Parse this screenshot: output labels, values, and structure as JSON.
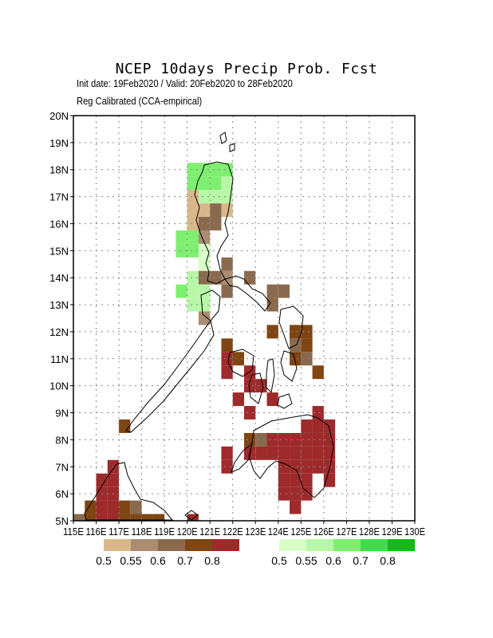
{
  "header": {
    "title": "NCEP 10days Precip Prob. Fcst",
    "subtitle": "Init date: 19Feb2020 / Valid: 20Feb2020 to 28Feb2020",
    "method": "Reg Calibrated (CCA-empirical)"
  },
  "map": {
    "lon_range": [
      115,
      130
    ],
    "lat_range": [
      5,
      20
    ],
    "grid_step": 1,
    "grid": "dotted",
    "lat_ticks": [
      "5N",
      "6N",
      "7N",
      "8N",
      "9N",
      "10N",
      "11N",
      "12N",
      "13N",
      "14N",
      "15N",
      "16N",
      "17N",
      "18N",
      "19N",
      "20N"
    ],
    "lon_ticks": [
      "115E",
      "116E",
      "117E",
      "118E",
      "119E",
      "120E",
      "121E",
      "122E",
      "123E",
      "124E",
      "125E",
      "126E",
      "127E",
      "128E",
      "129E",
      "130E"
    ]
  },
  "legend": {
    "below": {
      "colors": [
        "#d8b88a",
        "#a98c72",
        "#8a6a4f",
        "#7f4512",
        "#9e2a2b"
      ],
      "labels": [
        "0.5",
        "0.55",
        "0.6",
        "0.7",
        "0.8"
      ]
    },
    "above": {
      "colors": [
        "#d8ffc8",
        "#b7f7a7",
        "#7eef70",
        "#3fdc4e",
        "#12bb17"
      ],
      "labels": [
        "0.5",
        "0.55",
        "0.6",
        "0.7",
        "0.8"
      ]
    }
  },
  "chart_data": {
    "type": "heatmap",
    "cell_size_deg": 0.5,
    "categories_key": {
      "B1": "below 0.5",
      "B2": "below 0.55",
      "B3": "below 0.6",
      "B4": "below 0.7",
      "B5": "below 0.8",
      "A1": "above 0.5",
      "A2": "above 0.55",
      "A3": "above 0.6"
    },
    "cells": [
      [
        120.25,
        18.0,
        "A3"
      ],
      [
        120.75,
        18.0,
        "A3"
      ],
      [
        121.25,
        18.0,
        "A3"
      ],
      [
        121.75,
        18.0,
        "A3"
      ],
      [
        120.25,
        17.5,
        "A3"
      ],
      [
        120.75,
        17.5,
        "A3"
      ],
      [
        121.25,
        17.5,
        "A3"
      ],
      [
        121.75,
        17.5,
        "A2"
      ],
      [
        120.25,
        17.0,
        "B1"
      ],
      [
        120.75,
        17.0,
        "A2"
      ],
      [
        121.25,
        17.0,
        "A2"
      ],
      [
        121.75,
        17.0,
        "A2"
      ],
      [
        120.25,
        16.5,
        "B1"
      ],
      [
        120.75,
        16.5,
        "B1"
      ],
      [
        121.25,
        16.5,
        "B3"
      ],
      [
        121.75,
        16.5,
        "B1"
      ],
      [
        120.25,
        16.0,
        "B1"
      ],
      [
        120.75,
        16.0,
        "B3"
      ],
      [
        121.25,
        16.0,
        "B3"
      ],
      [
        119.75,
        15.5,
        "A3"
      ],
      [
        120.25,
        15.5,
        "A3"
      ],
      [
        120.75,
        15.5,
        "B2"
      ],
      [
        119.75,
        15.0,
        "A3"
      ],
      [
        120.25,
        15.0,
        "A3"
      ],
      [
        120.75,
        15.0,
        "A1"
      ],
      [
        120.75,
        14.5,
        "A1"
      ],
      [
        121.75,
        14.5,
        "B3"
      ],
      [
        120.25,
        14.0,
        "A2"
      ],
      [
        120.75,
        14.0,
        "B3"
      ],
      [
        121.25,
        14.0,
        "B3"
      ],
      [
        121.75,
        14.0,
        "B2"
      ],
      [
        122.75,
        14.0,
        "B3"
      ],
      [
        119.75,
        13.5,
        "A3"
      ],
      [
        120.25,
        13.5,
        "A2"
      ],
      [
        120.75,
        13.5,
        "A2"
      ],
      [
        121.75,
        13.5,
        "B3"
      ],
      [
        123.75,
        13.5,
        "B3"
      ],
      [
        124.25,
        13.5,
        "B3"
      ],
      [
        120.25,
        13.0,
        "A2"
      ],
      [
        120.75,
        13.0,
        "A2"
      ],
      [
        123.75,
        13.0,
        "B3"
      ],
      [
        120.75,
        12.5,
        "B2"
      ],
      [
        123.75,
        12.0,
        "B4"
      ],
      [
        124.75,
        12.0,
        "B4"
      ],
      [
        125.25,
        12.0,
        "B4"
      ],
      [
        121.75,
        11.5,
        "B4"
      ],
      [
        124.75,
        11.5,
        "B3"
      ],
      [
        125.25,
        11.5,
        "B4"
      ],
      [
        121.75,
        11.0,
        "B5"
      ],
      [
        122.25,
        11.0,
        "B4"
      ],
      [
        124.75,
        11.0,
        "B4"
      ],
      [
        125.25,
        11.0,
        "B3"
      ],
      [
        121.75,
        10.5,
        "B5"
      ],
      [
        122.75,
        10.5,
        "B5"
      ],
      [
        125.75,
        10.5,
        "B4"
      ],
      [
        122.75,
        10.0,
        "B5"
      ],
      [
        123.25,
        10.0,
        "B5"
      ],
      [
        122.25,
        9.5,
        "B5"
      ],
      [
        123.75,
        9.5,
        "B5"
      ],
      [
        122.75,
        9.0,
        "B5"
      ],
      [
        125.75,
        9.0,
        "B5"
      ],
      [
        117.25,
        8.5,
        "B4"
      ],
      [
        125.25,
        8.5,
        "B5"
      ],
      [
        125.75,
        8.5,
        "B5"
      ],
      [
        126.25,
        8.5,
        "B5"
      ],
      [
        122.75,
        8.0,
        "B4"
      ],
      [
        123.25,
        8.0,
        "B3"
      ],
      [
        123.75,
        8.0,
        "B5"
      ],
      [
        124.25,
        8.0,
        "B5"
      ],
      [
        124.75,
        8.0,
        "B5"
      ],
      [
        125.25,
        8.0,
        "B5"
      ],
      [
        125.75,
        8.0,
        "B5"
      ],
      [
        126.25,
        8.0,
        "B5"
      ],
      [
        121.75,
        7.5,
        "B5"
      ],
      [
        122.75,
        7.5,
        "B5"
      ],
      [
        123.25,
        7.5,
        "B5"
      ],
      [
        123.75,
        7.5,
        "B5"
      ],
      [
        124.25,
        7.5,
        "B5"
      ],
      [
        124.75,
        7.5,
        "B5"
      ],
      [
        125.25,
        7.5,
        "B5"
      ],
      [
        125.75,
        7.5,
        "B5"
      ],
      [
        126.25,
        7.5,
        "B5"
      ],
      [
        116.75,
        7.0,
        "B5"
      ],
      [
        121.75,
        7.0,
        "B5"
      ],
      [
        124.25,
        7.0,
        "B5"
      ],
      [
        124.75,
        7.0,
        "B5"
      ],
      [
        125.25,
        7.0,
        "B5"
      ],
      [
        125.75,
        7.0,
        "B5"
      ],
      [
        126.25,
        7.0,
        "B5"
      ],
      [
        116.25,
        6.5,
        "B5"
      ],
      [
        116.75,
        6.5,
        "B5"
      ],
      [
        124.25,
        6.5,
        "B5"
      ],
      [
        124.75,
        6.5,
        "B5"
      ],
      [
        125.25,
        6.5,
        "B5"
      ],
      [
        126.25,
        6.5,
        "B5"
      ],
      [
        116.25,
        6.0,
        "B5"
      ],
      [
        116.75,
        6.0,
        "B5"
      ],
      [
        124.25,
        6.0,
        "B5"
      ],
      [
        124.75,
        6.0,
        "B5"
      ],
      [
        125.25,
        6.0,
        "B5"
      ],
      [
        115.75,
        5.5,
        "B4"
      ],
      [
        116.25,
        5.5,
        "B5"
      ],
      [
        116.75,
        5.5,
        "B5"
      ],
      [
        117.25,
        5.5,
        "B4"
      ],
      [
        117.75,
        5.5,
        "B3"
      ],
      [
        124.75,
        5.5,
        "B5"
      ],
      [
        115.25,
        5.0,
        "B3"
      ],
      [
        115.75,
        5.0,
        "B4"
      ],
      [
        116.25,
        5.0,
        "B5"
      ],
      [
        116.75,
        5.0,
        "B5"
      ],
      [
        117.25,
        5.0,
        "B4"
      ],
      [
        117.75,
        5.0,
        "B4"
      ],
      [
        118.25,
        5.0,
        "B4"
      ],
      [
        118.75,
        5.0,
        "B4"
      ],
      [
        120.25,
        5.0,
        "B5"
      ]
    ]
  }
}
